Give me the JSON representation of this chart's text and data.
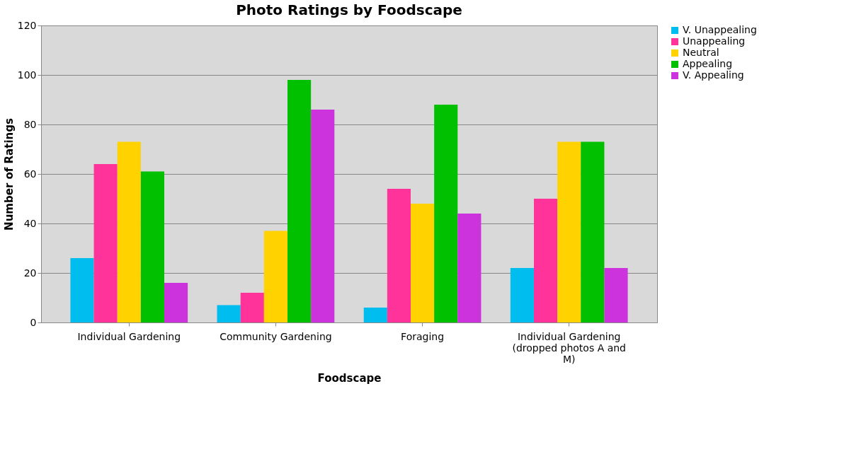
{
  "chart_data": {
    "type": "bar",
    "title": "Photo Ratings by Foodscape",
    "xlabel": "Foodscape",
    "ylabel": "Number of Ratings",
    "categories": [
      "Individual Gardening",
      "Community Gardening",
      "Foraging",
      "Individual Gardening (dropped photos  A and M)"
    ],
    "series": [
      {
        "name": "V. Unappealing",
        "color": "#00bdf0",
        "values": [
          26,
          7,
          6,
          22
        ]
      },
      {
        "name": "Unappealing",
        "color": "#ff3399",
        "values": [
          64,
          12,
          54,
          50
        ]
      },
      {
        "name": "Neutral",
        "color": "#ffd200",
        "values": [
          73,
          37,
          48,
          73
        ]
      },
      {
        "name": "Appealing",
        "color": "#00c000",
        "values": [
          61,
          98,
          88,
          73
        ]
      },
      {
        "name": "V. Appealing",
        "color": "#cc33dd",
        "values": [
          16,
          86,
          44,
          22
        ]
      }
    ],
    "ylim": [
      0,
      120
    ],
    "yticks": [
      0,
      20,
      40,
      60,
      80,
      100,
      120
    ],
    "grid": "y",
    "legend": "right"
  }
}
